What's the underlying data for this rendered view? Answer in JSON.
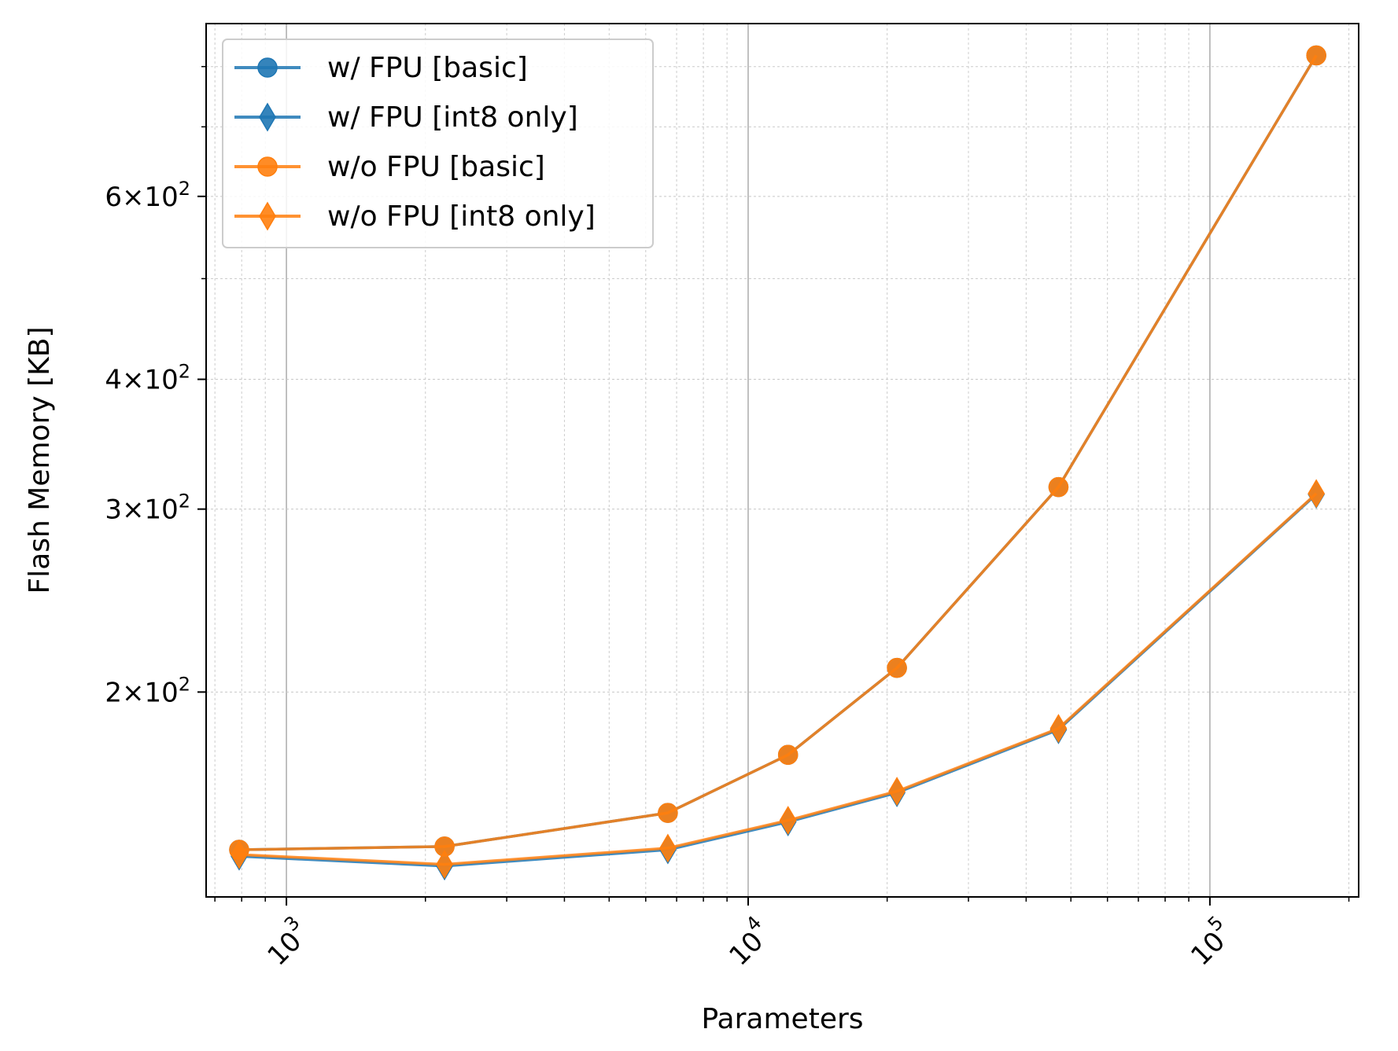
{
  "chart_data": {
    "type": "line",
    "xlabel": "Parameters",
    "ylabel": "Flash Memory [KB]",
    "x_scale": "log",
    "y_scale": "log",
    "xlim": [
      670,
      210000
    ],
    "ylim": [
      127,
      880
    ],
    "x_ticks": [
      {
        "value": 1000,
        "base": "10",
        "exp": "3"
      },
      {
        "value": 10000,
        "base": "10",
        "exp": "4"
      },
      {
        "value": 100000,
        "base": "10",
        "exp": "5"
      }
    ],
    "y_ticks": [
      {
        "value": 200,
        "mant": "2",
        "base": "10",
        "exp": "2"
      },
      {
        "value": 300,
        "mant": "3",
        "base": "10",
        "exp": "2"
      },
      {
        "value": 400,
        "mant": "4",
        "base": "10",
        "exp": "2"
      },
      {
        "value": 600,
        "mant": "6",
        "base": "10",
        "exp": "2"
      }
    ],
    "grid": true,
    "legend_position": "top-left",
    "series": [
      {
        "name": "w/ FPU [basic]",
        "color": "#1f77b4",
        "marker": "circle",
        "x": [
          790,
          2200,
          6700,
          12200,
          21000,
          47000,
          170000
        ],
        "y": [
          141,
          142,
          153,
          174,
          211,
          315,
          820
        ]
      },
      {
        "name": "w/ FPU [int8 only]",
        "color": "#1f77b4",
        "marker": "diamond",
        "x": [
          790,
          2200,
          6700,
          12200,
          21000,
          47000,
          170000
        ],
        "y": [
          139,
          136,
          141,
          150,
          160,
          184,
          310
        ]
      },
      {
        "name": "w/o FPU [basic]",
        "color": "#ff7f0e",
        "marker": "circle",
        "x": [
          790,
          2200,
          6700,
          12200,
          21000,
          47000,
          170000
        ],
        "y": [
          141,
          142,
          153,
          174,
          211,
          315,
          820
        ]
      },
      {
        "name": "w/o FPU [int8 only]",
        "color": "#ff7f0e",
        "marker": "diamond",
        "x": [
          790,
          2200,
          6700,
          12200,
          21000,
          47000,
          170000
        ],
        "y": [
          139.5,
          136.5,
          141.5,
          150.5,
          160.5,
          184.5,
          310.5
        ]
      }
    ]
  }
}
